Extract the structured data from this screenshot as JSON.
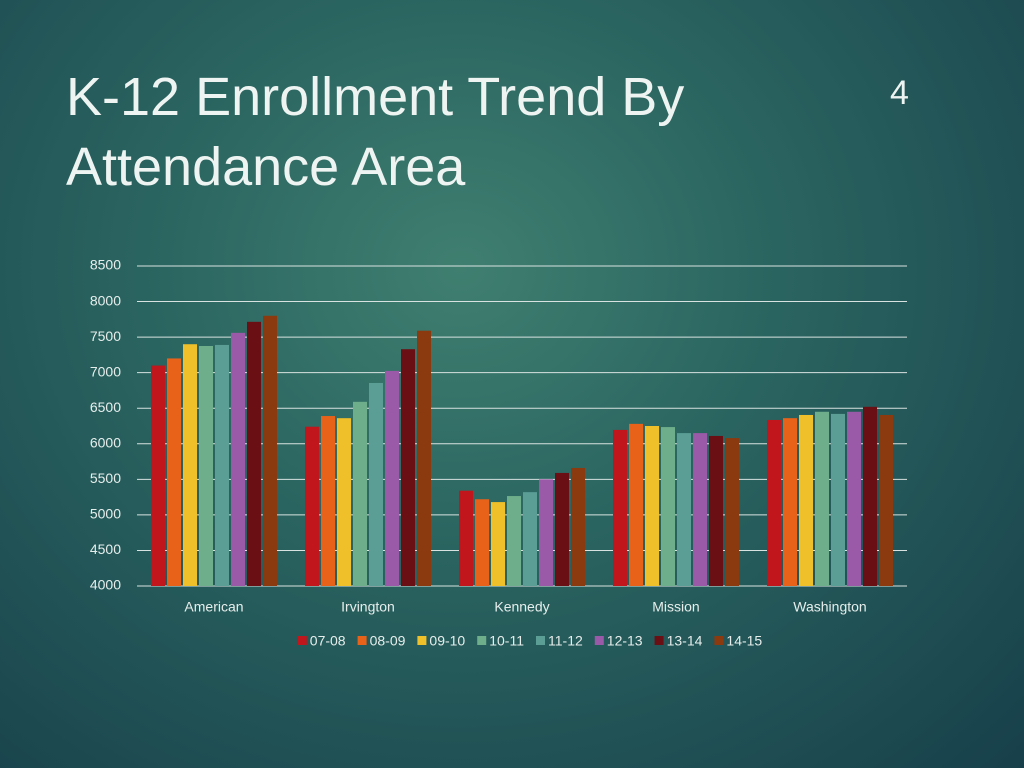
{
  "slide_number": 4,
  "chart_data": {
    "type": "bar",
    "title": "K-12 Enrollment Trend By Attendance Area",
    "categories": [
      "American",
      "Irvington",
      "Kennedy",
      "Mission",
      "Washington"
    ],
    "series": [
      {
        "name": "07-08",
        "color": "#c0161c",
        "values": [
          7100,
          6240,
          5340,
          6195,
          6335
        ]
      },
      {
        "name": "08-09",
        "color": "#e8621a",
        "values": [
          7200,
          6390,
          5220,
          6280,
          6360
        ]
      },
      {
        "name": "09-10",
        "color": "#f0c02a",
        "values": [
          7400,
          6360,
          5180,
          6250,
          6405
        ]
      },
      {
        "name": "10-11",
        "color": "#6fae8a",
        "values": [
          7375,
          6590,
          5265,
          6235,
          6450
        ]
      },
      {
        "name": "11-12",
        "color": "#5a9e96",
        "values": [
          7390,
          6855,
          5320,
          6150,
          6420
        ]
      },
      {
        "name": "12-13",
        "color": "#9b5aa8",
        "values": [
          7560,
          7025,
          5500,
          6150,
          6450
        ]
      },
      {
        "name": "13-14",
        "color": "#6a0f14",
        "values": [
          7715,
          7330,
          5590,
          6110,
          6520
        ]
      },
      {
        "name": "14-15",
        "color": "#8b3a0f",
        "values": [
          7800,
          7590,
          5660,
          6080,
          6405
        ]
      }
    ],
    "ylim": [
      4000,
      8500
    ],
    "yticks": [
      4000,
      4500,
      5000,
      5500,
      6000,
      6500,
      7000,
      7500,
      8000,
      8500
    ],
    "grid": true,
    "legend": "bottom"
  }
}
